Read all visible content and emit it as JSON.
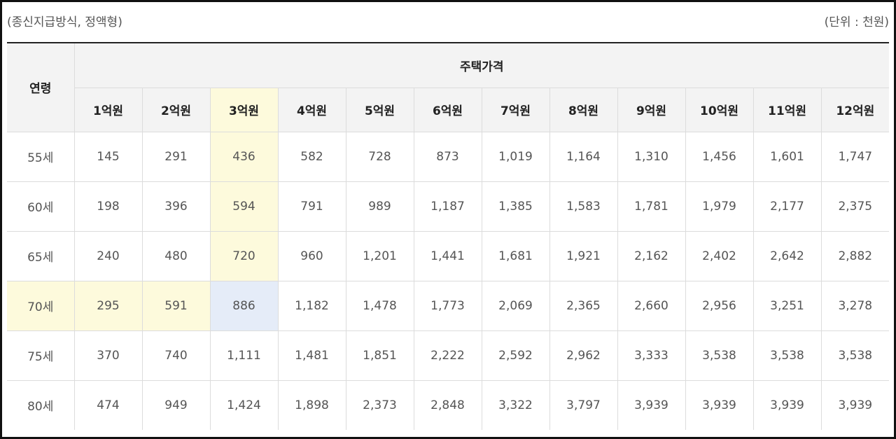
{
  "caption": {
    "left": "(종신지급방식, 정액형)",
    "right": "(단위 : 천원)"
  },
  "header": {
    "age_label": "연령",
    "price_label": "주택가격",
    "columns": [
      "1억원",
      "2억원",
      "3억원",
      "4억원",
      "5억원",
      "6억원",
      "7억원",
      "8억원",
      "9억원",
      "10억원",
      "11억원",
      "12억원"
    ]
  },
  "rows": [
    {
      "age": "55세",
      "values": [
        "145",
        "291",
        "436",
        "582",
        "728",
        "873",
        "1,019",
        "1,164",
        "1,310",
        "1,456",
        "1,601",
        "1,747"
      ]
    },
    {
      "age": "60세",
      "values": [
        "198",
        "396",
        "594",
        "791",
        "989",
        "1,187",
        "1,385",
        "1,583",
        "1,781",
        "1,979",
        "2,177",
        "2,375"
      ]
    },
    {
      "age": "65세",
      "values": [
        "240",
        "480",
        "720",
        "960",
        "1,201",
        "1,441",
        "1,681",
        "1,921",
        "2,162",
        "2,402",
        "2,642",
        "2,882"
      ]
    },
    {
      "age": "70세",
      "values": [
        "295",
        "591",
        "886",
        "1,182",
        "1,478",
        "1,773",
        "2,069",
        "2,365",
        "2,660",
        "2,956",
        "3,251",
        "3,278"
      ]
    },
    {
      "age": "75세",
      "values": [
        "370",
        "740",
        "1,111",
        "1,481",
        "1,851",
        "2,222",
        "2,592",
        "2,962",
        "3,333",
        "3,538",
        "3,538",
        "3,538"
      ]
    },
    {
      "age": "80세",
      "values": [
        "474",
        "949",
        "1,424",
        "1,898",
        "2,373",
        "2,848",
        "3,322",
        "3,797",
        "3,939",
        "3,939",
        "3,939",
        "3,939"
      ]
    }
  ],
  "highlight": {
    "column_index": 2,
    "row_index": 3,
    "column_color": "#fdfadc",
    "intersection_color": "#e5ecf8"
  }
}
